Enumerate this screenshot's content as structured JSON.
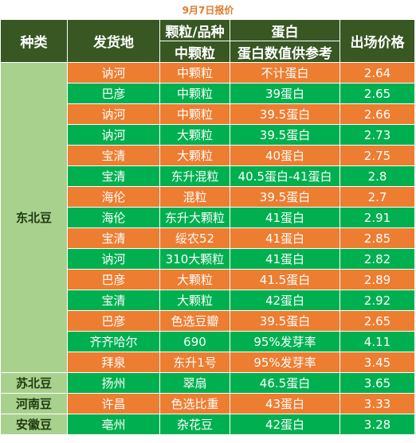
{
  "title": "9月7日报价",
  "headers": {
    "category": "种类",
    "origin": "发货地",
    "grain_top": "颗粒/品种",
    "grain_bottom": "中颗粒",
    "protein_top": "蛋白",
    "protein_bottom": "蛋白数值供参考",
    "price": "出场价格"
  },
  "colors": {
    "header": "#385723",
    "orange_row": "#ed7d31",
    "green_row": "#00b050",
    "category_bg": "#a9d18e",
    "title": "#e2792a"
  },
  "groups": [
    {
      "category": "东北豆",
      "rows": [
        {
          "origin": "讷河",
          "grain": "中颗粒",
          "protein": "不计蛋白",
          "price": "2.64",
          "color": "orange"
        },
        {
          "origin": "巴彦",
          "grain": "中颗粒",
          "protein": "39蛋白",
          "price": "2.65",
          "color": "green"
        },
        {
          "origin": "讷河",
          "grain": "中颗粒",
          "protein": "39.5蛋白",
          "price": "2.66",
          "color": "orange"
        },
        {
          "origin": "讷河",
          "grain": "大颗粒",
          "protein": "39.5蛋白",
          "price": "2.73",
          "color": "green"
        },
        {
          "origin": "宝清",
          "grain": "大颗粒",
          "protein": "40蛋白",
          "price": "2.75",
          "color": "orange"
        },
        {
          "origin": "宝清",
          "grain": "东升混粒",
          "protein": "40.5蛋白-41蛋白",
          "price": "2.8",
          "color": "green"
        },
        {
          "origin": "海伦",
          "grain": "混粒",
          "protein": "39.5蛋白",
          "price": "2.7",
          "color": "orange"
        },
        {
          "origin": "海伦",
          "grain": "东升大颗粒",
          "protein": "41蛋白",
          "price": "2.91",
          "color": "green"
        },
        {
          "origin": "宝清",
          "grain": "绥农52",
          "protein": "41蛋白",
          "price": "2.85",
          "color": "orange"
        },
        {
          "origin": "讷河",
          "grain": "310大颗粒",
          "protein": "41蛋白",
          "price": "2.82",
          "color": "green"
        },
        {
          "origin": "巴彦",
          "grain": "大颗粒",
          "protein": "41.5蛋白",
          "price": "2.89",
          "color": "orange"
        },
        {
          "origin": "宝清",
          "grain": "大颗粒",
          "protein": "42蛋白",
          "price": "2.92",
          "color": "green"
        },
        {
          "origin": "巴彦",
          "grain": "色选豆瓣",
          "protein": "39.5蛋白",
          "price": "2.65",
          "color": "orange"
        },
        {
          "origin": "齐齐哈尔",
          "grain": "690",
          "protein": "95%发芽率",
          "price": "4.11",
          "color": "green"
        },
        {
          "origin": "拜泉",
          "grain": "东升1号",
          "protein": "95%发芽率",
          "price": "3.45",
          "color": "orange"
        }
      ]
    },
    {
      "category": "苏北豆",
      "rows": [
        {
          "origin": "扬州",
          "grain": "翠扇",
          "protein": "46.5蛋白",
          "price": "3.65",
          "color": "green"
        }
      ]
    },
    {
      "category": "河南豆",
      "rows": [
        {
          "origin": "许昌",
          "grain": "色选比重",
          "protein": "43蛋白",
          "price": "3.33",
          "color": "orange"
        }
      ]
    },
    {
      "category": "安徽豆",
      "rows": [
        {
          "origin": "亳州",
          "grain": "杂花豆",
          "protein": "42蛋白",
          "price": "3.28",
          "color": "green"
        }
      ]
    }
  ]
}
